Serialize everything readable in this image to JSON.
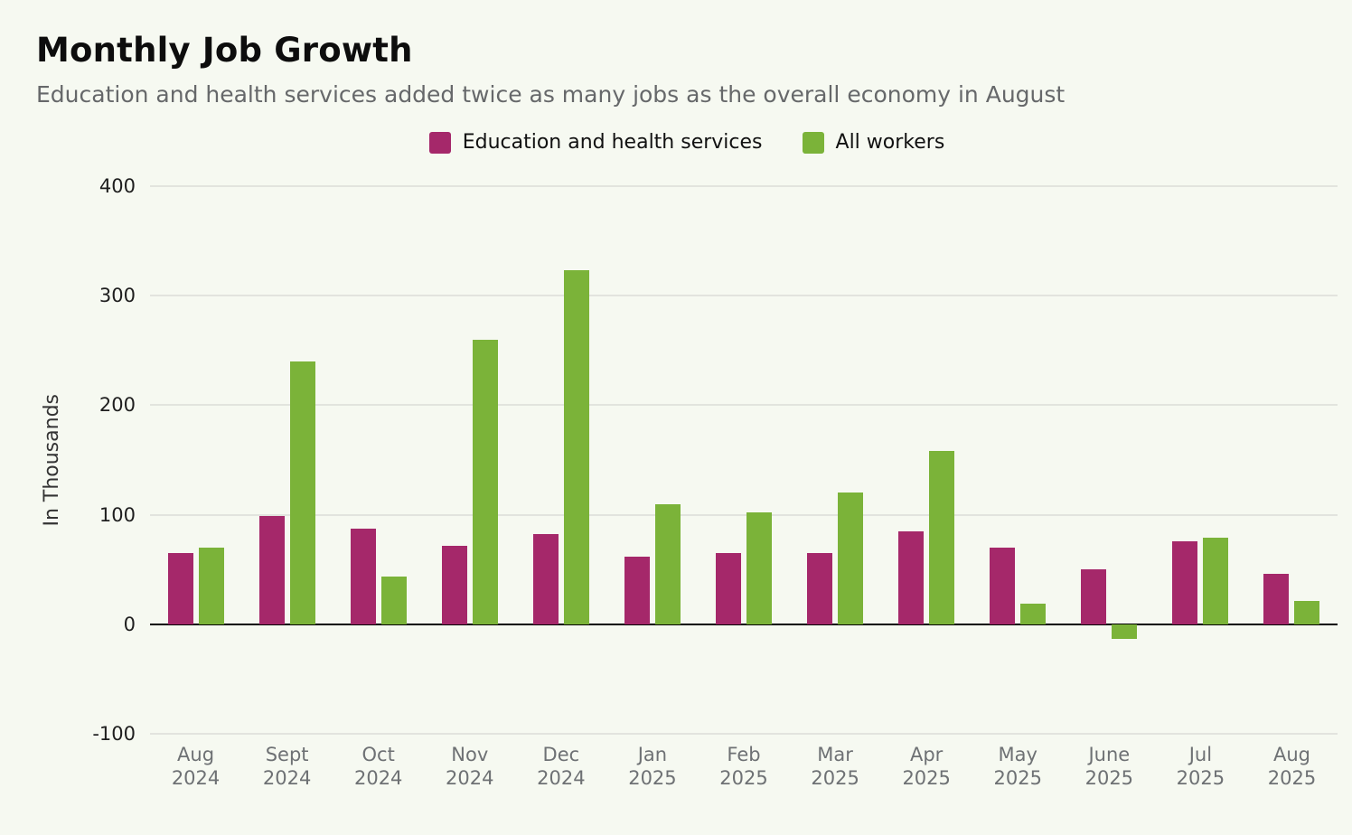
{
  "chart_data": {
    "type": "bar",
    "title": "Monthly Job Growth",
    "subtitle": "Education and health services added twice as many jobs as the overall economy in August",
    "ylabel": "In Thousands",
    "ylim": [
      -100,
      400
    ],
    "yticks": [
      400,
      300,
      200,
      100,
      0,
      -100
    ],
    "grid": "horizontal",
    "legend_position": "top-center",
    "background_color": "#f6f9f1",
    "categories": [
      {
        "month": "Aug",
        "year": "2024"
      },
      {
        "month": "Sept",
        "year": "2024"
      },
      {
        "month": "Oct",
        "year": "2024"
      },
      {
        "month": "Nov",
        "year": "2024"
      },
      {
        "month": "Dec",
        "year": "2024"
      },
      {
        "month": "Jan",
        "year": "2025"
      },
      {
        "month": "Feb",
        "year": "2025"
      },
      {
        "month": "Mar",
        "year": "2025"
      },
      {
        "month": "Apr",
        "year": "2025"
      },
      {
        "month": "May",
        "year": "2025"
      },
      {
        "month": "June",
        "year": "2025"
      },
      {
        "month": "Jul",
        "year": "2025"
      },
      {
        "month": "Aug",
        "year": "2025"
      }
    ],
    "series": [
      {
        "name": "Education and health services",
        "color": "#a5286a",
        "values": [
          65,
          99,
          87,
          72,
          82,
          62,
          65,
          65,
          85,
          70,
          50,
          76,
          46
        ]
      },
      {
        "name": "All workers",
        "color": "#7bb339",
        "values": [
          70,
          240,
          44,
          260,
          323,
          110,
          102,
          120,
          158,
          19,
          -13,
          79,
          21
        ]
      }
    ]
  }
}
